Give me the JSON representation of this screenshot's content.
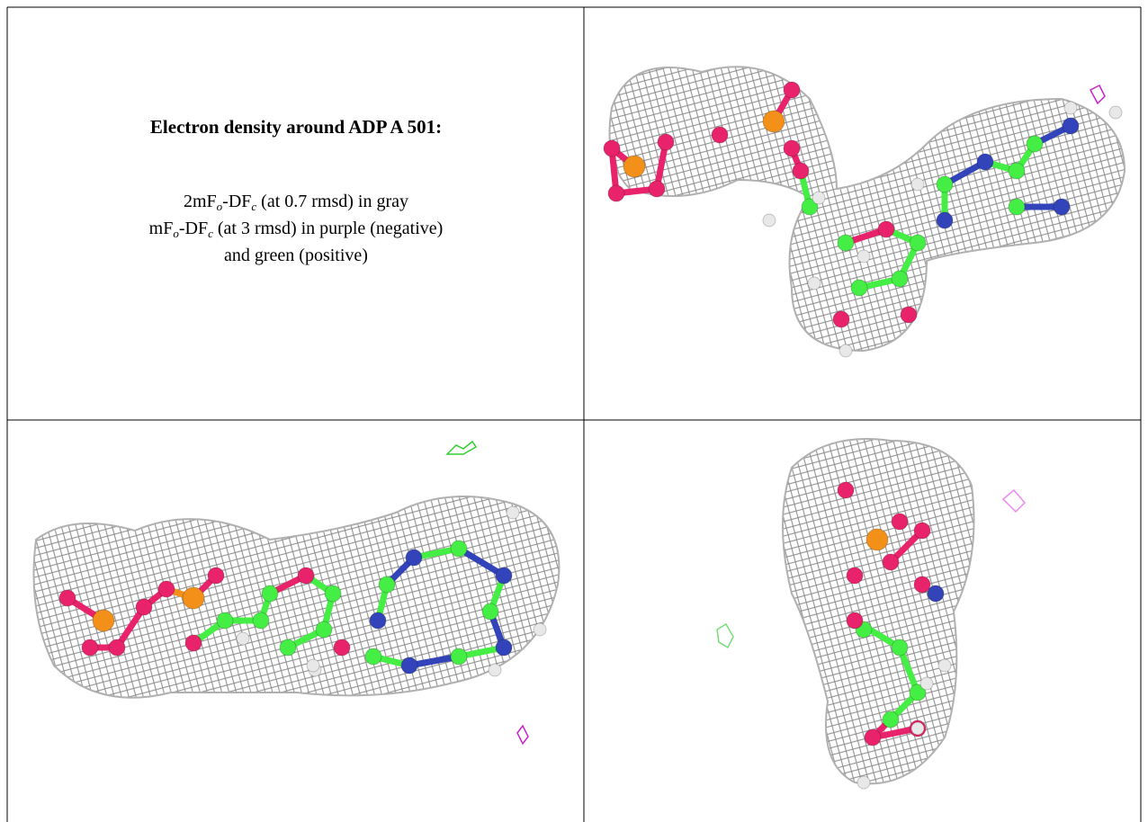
{
  "caption": {
    "title": "Electron density around ADP A 501:",
    "lines": [
      [
        {
          "text": "2mF"
        },
        {
          "sub": "o"
        },
        {
          "text": "-DF"
        },
        {
          "sub": "c"
        },
        {
          "text": " (at 0.7 rmsd) in gray"
        }
      ],
      [
        {
          "text": "mF"
        },
        {
          "sub": "o"
        },
        {
          "text": "-DF"
        },
        {
          "sub": "c"
        },
        {
          "text": " (at 3 rmsd) in purple (negative)"
        }
      ],
      [
        {
          "text": "and green (positive)"
        }
      ]
    ]
  }
}
